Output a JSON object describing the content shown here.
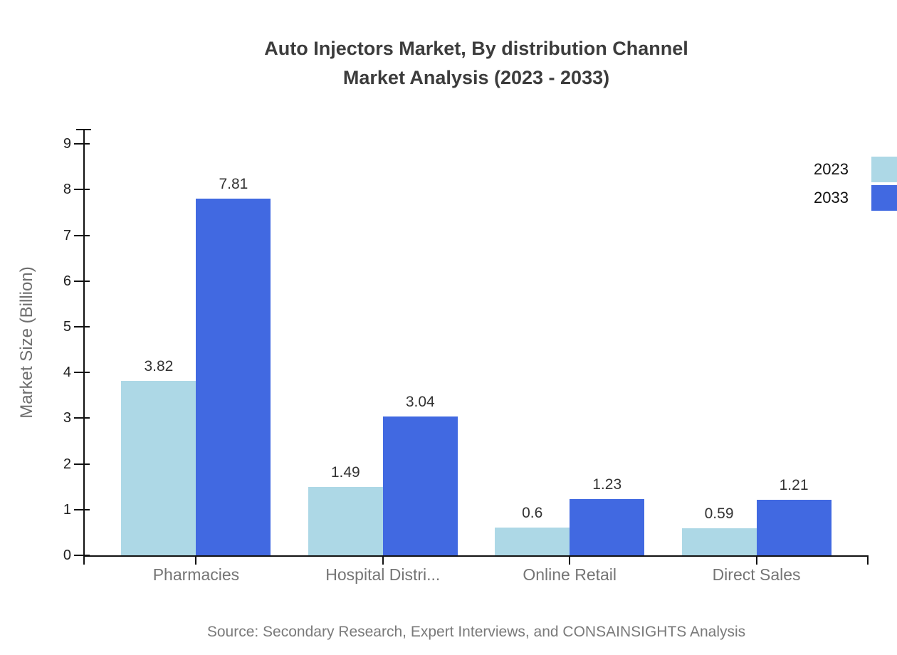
{
  "title": {
    "line1": "Auto Injectors Market, By distribution Channel",
    "line2": "Market Analysis (2023 - 2033)"
  },
  "source": "Source: Secondary Research, Expert Interviews, and CONSAINSIGHTS Analysis",
  "chart_data": {
    "type": "bar",
    "categories": [
      "Pharmacies",
      "Hospital Distri...",
      "Online Retail",
      "Direct Sales"
    ],
    "series": [
      {
        "name": "2023",
        "color": "#ADD8E6",
        "values": [
          3.82,
          1.49,
          0.6,
          0.59
        ]
      },
      {
        "name": "2033",
        "color": "#4169E1",
        "values": [
          7.81,
          3.04,
          1.23,
          1.21
        ]
      }
    ],
    "value_labels": [
      "3.82",
      "7.81",
      "1.49",
      "3.04",
      "0.6",
      "1.23",
      "0.59",
      "1.21"
    ],
    "ylabel": "Market Size (Billion)",
    "yticks": [
      0,
      1,
      2,
      3,
      4,
      5,
      6,
      7,
      8,
      9
    ],
    "ylim": [
      0,
      9.33
    ],
    "grid": false,
    "legend_position": "top-right",
    "colors": {
      "axis": "#111111",
      "title_text": "#3c3c3c",
      "tick_label_text": "#1f1f1f",
      "category_label_text": "#757575",
      "muted_text": "#7a7a7a",
      "background": "#ffffff"
    }
  }
}
